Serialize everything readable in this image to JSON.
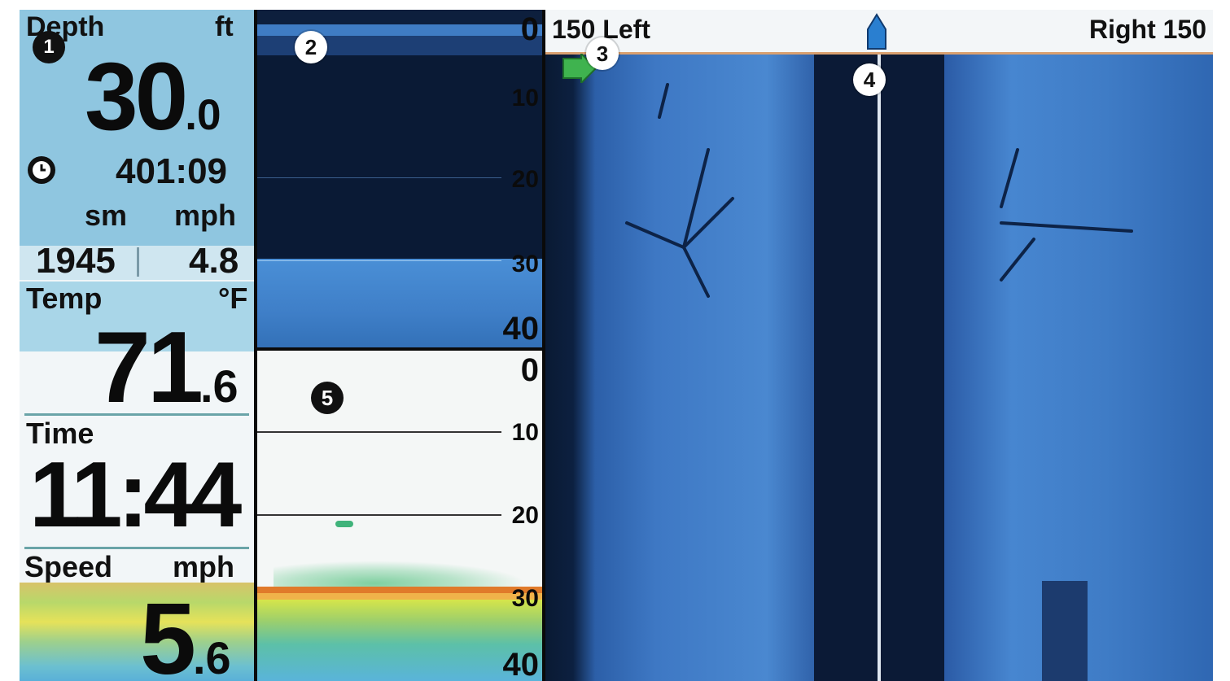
{
  "readout": {
    "depth_label": "Depth",
    "depth_unit": "ft",
    "depth_int": "30",
    "depth_frac": ".0",
    "timer_value": "401:09",
    "dist_unit": "sm",
    "speed_unit_top": "mph",
    "dist_value": "1945",
    "speed_value_top": "4.8",
    "temp_label": "Temp",
    "temp_unit": "°F",
    "temp_int": "71",
    "temp_frac": ".6",
    "time_label": "Time",
    "time_value": "11:44",
    "speed_label": "Speed",
    "speed_unit": "mph",
    "speed_int": "5",
    "speed_frac": ".6"
  },
  "down_imaging": {
    "scale": [
      "0",
      "10",
      "20",
      "30",
      "40"
    ]
  },
  "sonar_2d": {
    "scale": [
      "0",
      "10",
      "20",
      "30",
      "40"
    ]
  },
  "side_imaging": {
    "left_label": "150 Left",
    "right_label": "Right 150"
  },
  "callouts": [
    "1",
    "2",
    "3",
    "4",
    "5"
  ],
  "colors": {
    "panel_blue": "#8fc6e0",
    "water_blue": "#2f6fc0",
    "boat_icon": "#2a7fd0",
    "waypoint": "#3fb34f"
  },
  "icons": [
    "timer-icon",
    "boat-icon",
    "waypoint-icon"
  ]
}
